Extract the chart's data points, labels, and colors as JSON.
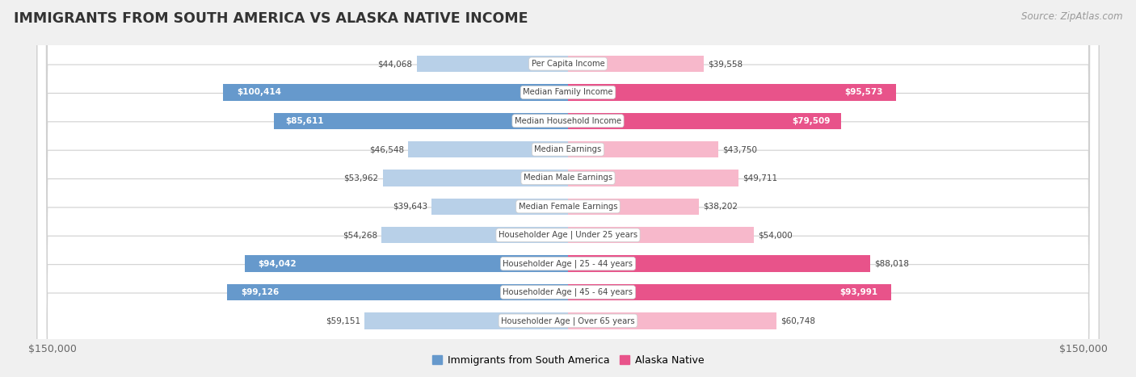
{
  "title": "IMMIGRANTS FROM SOUTH AMERICA VS ALASKA NATIVE INCOME",
  "source": "Source: ZipAtlas.com",
  "categories": [
    "Per Capita Income",
    "Median Family Income",
    "Median Household Income",
    "Median Earnings",
    "Median Male Earnings",
    "Median Female Earnings",
    "Householder Age | Under 25 years",
    "Householder Age | 25 - 44 years",
    "Householder Age | 45 - 64 years",
    "Householder Age | Over 65 years"
  ],
  "left_values": [
    44068,
    100414,
    85611,
    46548,
    53962,
    39643,
    54268,
    94042,
    99126,
    59151
  ],
  "right_values": [
    39558,
    95573,
    79509,
    43750,
    49711,
    38202,
    54000,
    88018,
    93991,
    60748
  ],
  "left_labels": [
    "$44,068",
    "$100,414",
    "$85,611",
    "$46,548",
    "$53,962",
    "$39,643",
    "$54,268",
    "$94,042",
    "$99,126",
    "$59,151"
  ],
  "right_labels": [
    "$39,558",
    "$95,573",
    "$79,509",
    "$43,750",
    "$49,711",
    "$38,202",
    "$54,000",
    "$88,018",
    "$93,991",
    "$60,748"
  ],
  "left_color_light": "#b8d0e8",
  "left_color_dark": "#6699cc",
  "right_color_light": "#f7b8cb",
  "right_color_dark": "#e8538a",
  "left_label_inside": [
    false,
    true,
    true,
    false,
    false,
    false,
    false,
    true,
    true,
    false
  ],
  "right_label_inside": [
    false,
    true,
    true,
    false,
    false,
    false,
    false,
    false,
    true,
    false
  ],
  "left_dark": [
    false,
    true,
    true,
    false,
    false,
    false,
    false,
    true,
    true,
    false
  ],
  "right_dark": [
    false,
    true,
    true,
    false,
    false,
    false,
    false,
    true,
    true,
    false
  ],
  "max_val": 150000,
  "bg_color": "#f0f0f0",
  "row_bg_odd": "#fafafa",
  "row_bg_even": "#f5f5f5",
  "legend_left": "Immigrants from South America",
  "legend_right": "Alaska Native",
  "xlabel_left": "$150,000",
  "xlabel_right": "$150,000"
}
